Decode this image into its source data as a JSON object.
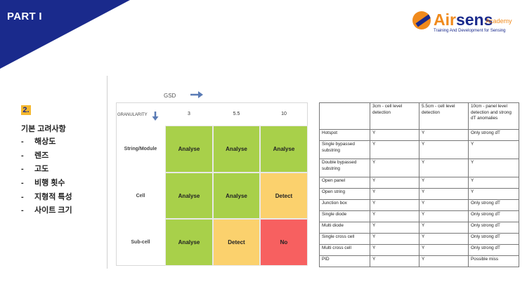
{
  "header": {
    "part_title": "PART I"
  },
  "logo": {
    "brand_air": "Air",
    "brand_sens": "sens",
    "brand_suffix": "Academy",
    "tagline": "Training And Development for Sensing"
  },
  "section": {
    "number": "2.",
    "title": "기본 고려사항",
    "bullet_marker": "-",
    "items": [
      "해상도",
      "렌즈",
      "고도",
      "비행 횟수",
      "지형적 특성",
      "사이트 크기"
    ]
  },
  "grid": {
    "gsd_label": "GSD",
    "granularity_label": "GRANULARITY",
    "columns": [
      "3",
      "5.5",
      "10"
    ],
    "rows": [
      {
        "label": "String/Module",
        "cells": [
          {
            "text": "Analyse",
            "status": "green"
          },
          {
            "text": "Analyse",
            "status": "green"
          },
          {
            "text": "Analyse",
            "status": "green"
          }
        ]
      },
      {
        "label": "Cell",
        "cells": [
          {
            "text": "Analyse",
            "status": "green"
          },
          {
            "text": "Analyse",
            "status": "green"
          },
          {
            "text": "Detect",
            "status": "amber"
          }
        ]
      },
      {
        "label": "Sub-cell",
        "cells": [
          {
            "text": "Analyse",
            "status": "green"
          },
          {
            "text": "Detect",
            "status": "amber"
          },
          {
            "text": "No",
            "status": "red"
          }
        ]
      }
    ],
    "colors": {
      "green": "#a8d04a",
      "amber": "#fbd16d",
      "red": "#f76060"
    }
  },
  "table": {
    "headers": [
      "",
      "3cm - cell level detection",
      "5.5cm - cell level detection",
      "10cm - panel level detection and strong dT anomalies"
    ],
    "rows": [
      [
        "Hotspot",
        "Y",
        "Y",
        "Only strong dT"
      ],
      [
        "Single bypassed substring",
        "Y",
        "Y",
        "Y"
      ],
      [
        "Double bypassed substring",
        "Y",
        "Y",
        "Y"
      ],
      [
        "Open panel",
        "Y",
        "Y",
        "Y"
      ],
      [
        "Open string",
        "Y",
        "Y",
        "Y"
      ],
      [
        "Junction box",
        "Y",
        "Y",
        "Only strong dT"
      ],
      [
        "Single diode",
        "Y",
        "Y",
        "Only strong dT"
      ],
      [
        "Multi diode",
        "Y",
        "Y",
        "Only strong dT"
      ],
      [
        "Single cross cell",
        "Y",
        "Y",
        "Only strong dT"
      ],
      [
        "Multi cross cell",
        "Y",
        "Y",
        "Only strong dT"
      ],
      [
        "PID",
        "Y",
        "Y",
        "Possible miss"
      ]
    ]
  },
  "theme": {
    "navy": "#1a2a8c",
    "orange": "#f08a1c",
    "badge_yellow": "#f5b82e"
  }
}
